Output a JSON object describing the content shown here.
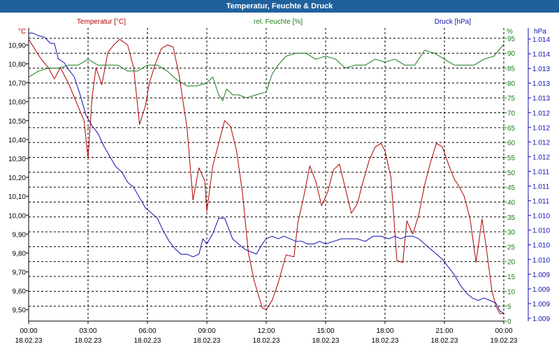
{
  "window": {
    "title": "Temperatur, Feuchte & Druck"
  },
  "chart_data": {
    "type": "line",
    "title": "Temperatur, Feuchte & Druck",
    "colors": {
      "temperature": "#b00000",
      "humidity": "#1a7a1a",
      "pressure": "#1010b0",
      "grid": "#000000",
      "title_bar": "#20619c"
    },
    "legend": {
      "temperature": "Temperatur [°C]",
      "humidity": "rel. Feuchte [%]",
      "pressure": "Druck [hPa]"
    },
    "axes": {
      "left_unit": "°C",
      "left_ticks": [
        "10,90",
        "10,80",
        "10,70",
        "10,60",
        "10,50",
        "10,40",
        "10,30",
        "10,20",
        "10,10",
        "10,00",
        "9,90",
        "9,80",
        "9,70",
        "9,60",
        "9,50"
      ],
      "ylim_temperature": [
        9.44,
        10.99
      ],
      "humidity_unit": "%",
      "humidity_ticks": [
        "95",
        "90",
        "85",
        "80",
        "75",
        "70",
        "65",
        "60",
        "55",
        "50",
        "45",
        "40",
        "35",
        "30",
        "25",
        "20",
        "15",
        "10",
        "5",
        "0"
      ],
      "ylim_humidity": [
        0,
        98.5
      ],
      "pressure_unit": "hPa",
      "pressure_ticks": [
        "1.014",
        "1.014",
        "1.013",
        "1.013",
        "1.013",
        "1.012",
        "1.012",
        "1.012",
        "1.012",
        "1.011",
        "1.011",
        "1.011",
        "1.010",
        "1.010",
        "1.010",
        "1.010",
        "1.009",
        "1.009",
        "1.009",
        "1.009"
      ],
      "ylim_pressure": [
        1008.8,
        1014.5
      ]
    },
    "x_ticks": [
      {
        "time": "00:00",
        "date": "18.02.23"
      },
      {
        "time": "03:00",
        "date": "18.02.23"
      },
      {
        "time": "06:00",
        "date": "18.02.23"
      },
      {
        "time": "09:00",
        "date": "18.02.23"
      },
      {
        "time": "12:00",
        "date": "18.02.23"
      },
      {
        "time": "15:00",
        "date": "18.02.23"
      },
      {
        "time": "18:00",
        "date": "18.02.23"
      },
      {
        "time": "21:00",
        "date": "18.02.23"
      },
      {
        "time": "00:00",
        "date": "19.02.23"
      }
    ],
    "xlim_hours": [
      0,
      24
    ],
    "series": [
      {
        "name": "Temperatur [°C]",
        "key": "temperature",
        "x": [
          0,
          0.3,
          0.6,
          1.0,
          1.3,
          1.6,
          2.0,
          2.4,
          2.8,
          3.0,
          3.2,
          3.4,
          3.7,
          4.0,
          4.3,
          4.6,
          5.0,
          5.3,
          5.6,
          5.9,
          6.1,
          6.4,
          6.7,
          7.0,
          7.3,
          7.6,
          8.0,
          8.3,
          8.6,
          8.9,
          9.0,
          9.3,
          9.6,
          9.9,
          10.2,
          10.5,
          10.8,
          11.1,
          11.4,
          11.6,
          11.8,
          12.0,
          12.3,
          12.6,
          13.0,
          13.4,
          13.6,
          13.9,
          14.2,
          14.5,
          14.8,
          15.1,
          15.4,
          15.7,
          16.0,
          16.3,
          16.6,
          16.9,
          17.2,
          17.5,
          17.8,
          18.0,
          18.3,
          18.6,
          18.9,
          19.1,
          19.4,
          19.7,
          20.0,
          20.3,
          20.6,
          20.9,
          21.2,
          21.5,
          21.7,
          22.0,
          22.3,
          22.6,
          22.9,
          23.1,
          23.4,
          23.6,
          23.8,
          24.0
        ],
        "values": [
          10.93,
          10.88,
          10.83,
          10.78,
          10.72,
          10.78,
          10.7,
          10.6,
          10.5,
          10.3,
          10.62,
          10.78,
          10.69,
          10.86,
          10.9,
          10.93,
          10.9,
          10.78,
          10.48,
          10.58,
          10.7,
          10.8,
          10.88,
          10.9,
          10.89,
          10.74,
          10.46,
          10.08,
          10.25,
          10.18,
          10.02,
          10.26,
          10.38,
          10.5,
          10.47,
          10.34,
          10.12,
          9.8,
          9.65,
          9.58,
          9.51,
          9.5,
          9.55,
          9.64,
          9.79,
          9.78,
          9.96,
          10.1,
          10.26,
          10.18,
          10.05,
          10.12,
          10.24,
          10.27,
          10.14,
          10.01,
          10.06,
          10.18,
          10.29,
          10.36,
          10.38,
          10.34,
          10.2,
          9.76,
          9.75,
          9.97,
          9.9,
          10.0,
          10.16,
          10.28,
          10.38,
          10.36,
          10.27,
          10.19,
          10.16,
          10.1,
          9.98,
          9.75,
          9.98,
          9.84,
          9.6,
          9.52,
          9.48,
          9.48
        ]
      },
      {
        "name": "rel. Feuchte [%]",
        "key": "humidity",
        "x": [
          0,
          0.5,
          1.0,
          1.5,
          2.0,
          2.5,
          3.0,
          3.5,
          4.0,
          4.5,
          5.0,
          5.5,
          6.0,
          6.5,
          7.0,
          7.5,
          8.0,
          8.5,
          9.0,
          9.3,
          9.6,
          9.8,
          10.0,
          10.3,
          10.6,
          11.0,
          11.5,
          12.0,
          12.3,
          12.6,
          13.0,
          13.5,
          14.0,
          14.5,
          15.0,
          15.5,
          16.0,
          16.5,
          17.0,
          17.5,
          18.0,
          18.5,
          19.0,
          19.5,
          20.0,
          20.5,
          21.0,
          21.5,
          22.0,
          22.5,
          23.0,
          23.5,
          24.0
        ],
        "values": [
          82,
          84,
          85,
          85,
          86,
          86,
          88,
          86,
          86,
          86,
          84,
          84,
          86,
          86,
          84,
          81,
          79,
          79,
          80,
          82,
          76,
          74,
          78,
          76,
          76,
          75,
          76,
          77,
          83,
          86,
          89,
          90,
          90,
          88,
          89,
          88,
          85,
          86,
          86,
          88,
          87,
          88,
          86,
          86,
          91,
          90,
          88,
          86,
          86,
          86,
          88,
          89,
          93
        ]
      },
      {
        "name": "Druck [hPa]",
        "key": "pressure",
        "x": [
          0,
          0.2,
          0.5,
          0.8,
          1.1,
          1.3,
          1.5,
          1.8,
          2.0,
          2.3,
          2.6,
          2.9,
          3.2,
          3.5,
          3.8,
          4.1,
          4.4,
          4.7,
          5.0,
          5.3,
          5.6,
          5.9,
          6.2,
          6.5,
          6.8,
          7.1,
          7.4,
          7.7,
          8.0,
          8.3,
          8.6,
          8.8,
          9.0,
          9.3,
          9.6,
          9.9,
          10.1,
          10.3,
          10.6,
          10.9,
          11.2,
          11.5,
          11.8,
          12.0,
          12.3,
          12.6,
          12.9,
          13.2,
          13.5,
          13.8,
          14.1,
          14.4,
          14.7,
          15.0,
          15.4,
          15.8,
          16.2,
          16.6,
          17.0,
          17.4,
          17.8,
          18.2,
          18.5,
          18.8,
          19.1,
          19.4,
          19.7,
          20.0,
          20.3,
          20.6,
          20.9,
          21.2,
          21.5,
          21.8,
          22.1,
          22.4,
          22.7,
          23.0,
          23.3,
          23.6,
          23.8,
          24.0
        ],
        "values": [
          1014.4,
          1014.4,
          1014.35,
          1014.32,
          1014.2,
          1014.2,
          1013.9,
          1013.82,
          1013.7,
          1013.55,
          1013.2,
          1012.8,
          1012.6,
          1012.45,
          1012.2,
          1012.0,
          1011.8,
          1011.7,
          1011.5,
          1011.4,
          1011.2,
          1011.0,
          1010.9,
          1010.8,
          1010.55,
          1010.35,
          1010.2,
          1010.1,
          1010.1,
          1010.05,
          1010.1,
          1010.4,
          1010.3,
          1010.5,
          1010.8,
          1010.8,
          1010.6,
          1010.4,
          1010.3,
          1010.2,
          1010.15,
          1010.1,
          1010.3,
          1010.4,
          1010.45,
          1010.4,
          1010.45,
          1010.4,
          1010.35,
          1010.35,
          1010.3,
          1010.3,
          1010.35,
          1010.3,
          1010.35,
          1010.4,
          1010.4,
          1010.4,
          1010.35,
          1010.45,
          1010.45,
          1010.4,
          1010.45,
          1010.4,
          1010.45,
          1010.45,
          1010.4,
          1010.3,
          1010.2,
          1010.1,
          1010.0,
          1009.85,
          1009.7,
          1009.5,
          1009.35,
          1009.25,
          1009.2,
          1009.25,
          1009.2,
          1009.15,
          1009.0,
          1008.95
        ]
      }
    ]
  }
}
